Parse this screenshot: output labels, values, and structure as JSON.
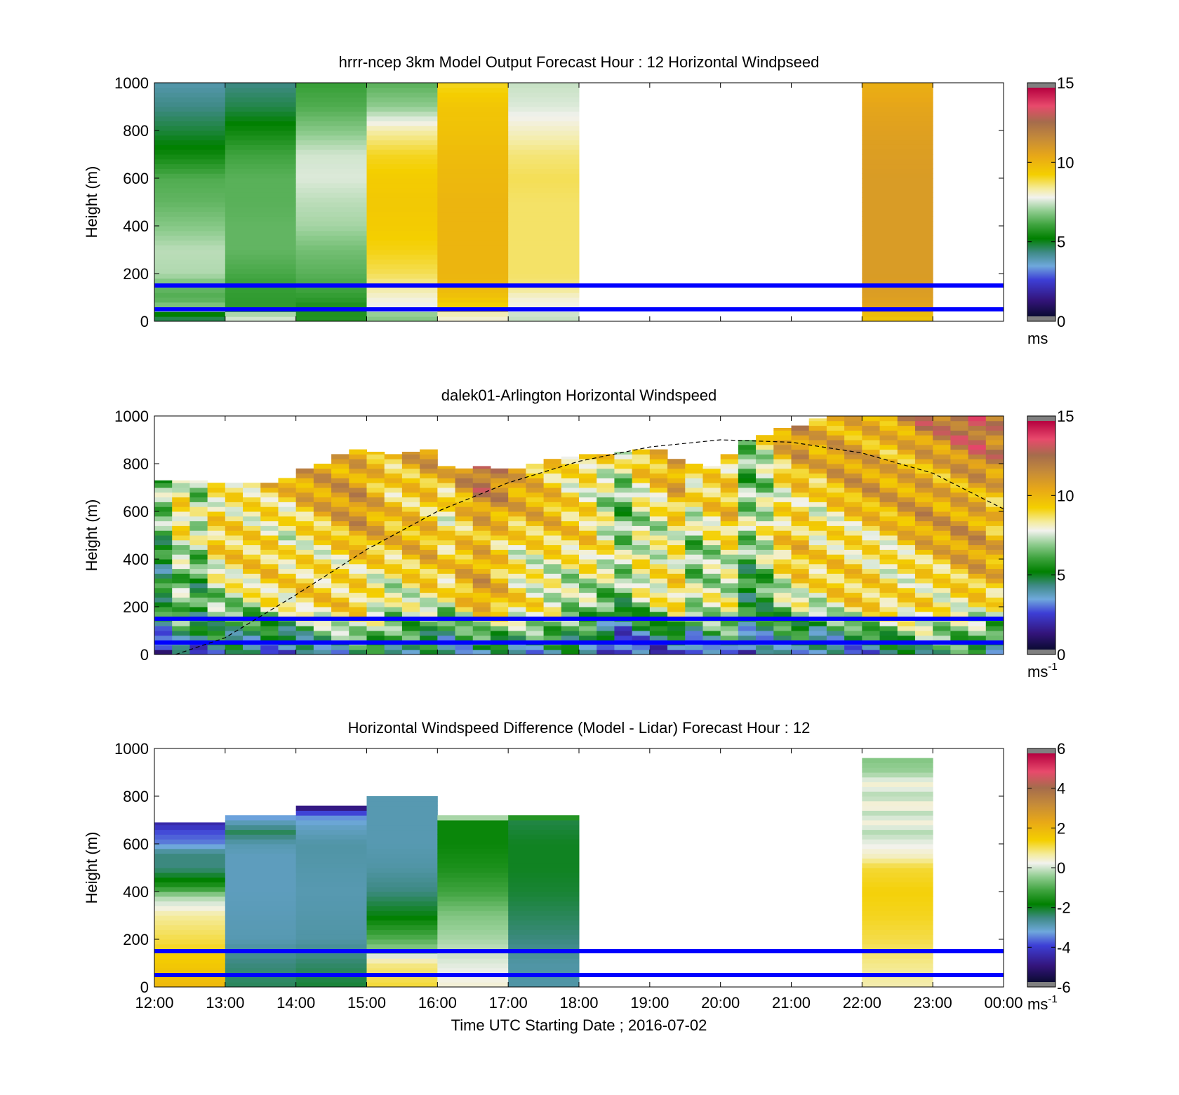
{
  "figure": {
    "xlabel": "Time UTC  Starting Date ; 2016-07-02",
    "x_ticks": [
      "12:00",
      "13:00",
      "14:00",
      "15:00",
      "16:00",
      "17:00",
      "18:00",
      "19:00",
      "20:00",
      "21:00",
      "22:00",
      "23:00",
      "00:00"
    ],
    "y_ticks": [
      "0",
      "200",
      "400",
      "600",
      "800",
      "1000"
    ],
    "ylabel": "Height (m)",
    "reference_lines_m": [
      50,
      150
    ],
    "reference_line_color": "#0000ff"
  },
  "chart_data": [
    {
      "type": "heatmap",
      "title": "hrrr-ncep 3km Model Output   Forecast Hour : 12 Horizontal Windpseed",
      "xlabel": "",
      "ylabel": "Height (m)",
      "xlim_hours": [
        12,
        24
      ],
      "ylim": [
        0,
        1000
      ],
      "colorbar": {
        "ticks": [
          "0",
          "5",
          "10",
          "15"
        ],
        "range": [
          0,
          15
        ],
        "unit_label": "ms",
        "unit_sup": ""
      },
      "columns": [
        {
          "start_hour": 12,
          "end_hour": 13,
          "top_m": 1000,
          "profile": [
            [
              25,
              4.6
            ],
            [
              50,
              7
            ],
            [
              100,
              6.2
            ],
            [
              150,
              6.5
            ],
            [
              200,
              7.2
            ],
            [
              300,
              7.3
            ],
            [
              400,
              6.8
            ],
            [
              500,
              6.4
            ],
            [
              600,
              6.2
            ],
            [
              700,
              5.3
            ],
            [
              800,
              4.7
            ],
            [
              900,
              4.2
            ],
            [
              1000,
              3.8
            ]
          ]
        },
        {
          "start_hour": 13,
          "end_hour": 14,
          "top_m": 1000,
          "profile": [
            [
              25,
              7.5
            ],
            [
              50,
              5.8
            ],
            [
              100,
              5.8
            ],
            [
              150,
              5.9
            ],
            [
              200,
              6.1
            ],
            [
              300,
              6.4
            ],
            [
              400,
              6.4
            ],
            [
              500,
              6.3
            ],
            [
              600,
              6.3
            ],
            [
              700,
              6
            ],
            [
              800,
              5.3
            ],
            [
              900,
              4.6
            ],
            [
              1000,
              4.2
            ]
          ]
        },
        {
          "start_hour": 14,
          "end_hour": 15,
          "top_m": 1000,
          "profile": [
            [
              25,
              5.6
            ],
            [
              50,
              5.4
            ],
            [
              100,
              5.8
            ],
            [
              150,
              6.1
            ],
            [
              200,
              6.3
            ],
            [
              300,
              6.6
            ],
            [
              400,
              7.1
            ],
            [
              500,
              7.3
            ],
            [
              600,
              7.6
            ],
            [
              700,
              7.5
            ],
            [
              800,
              6.8
            ],
            [
              900,
              6.2
            ],
            [
              1000,
              5.9
            ]
          ]
        },
        {
          "start_hour": 15,
          "end_hour": 16,
          "top_m": 1000,
          "profile": [
            [
              25,
              6.8
            ],
            [
              50,
              7.6
            ],
            [
              100,
              8
            ],
            [
              150,
              8.4
            ],
            [
              200,
              8.8
            ],
            [
              300,
              9.2
            ],
            [
              400,
              9.4
            ],
            [
              500,
              9.5
            ],
            [
              600,
              9.4
            ],
            [
              700,
              9.1
            ],
            [
              800,
              8.3
            ],
            [
              900,
              6.9
            ],
            [
              1000,
              6.3
            ]
          ]
        },
        {
          "start_hour": 16,
          "end_hour": 17,
          "top_m": 1000,
          "profile": [
            [
              25,
              8
            ],
            [
              50,
              9
            ],
            [
              100,
              9.7
            ],
            [
              150,
              10
            ],
            [
              200,
              10.1
            ],
            [
              300,
              10.1
            ],
            [
              400,
              10.1
            ],
            [
              500,
              10.1
            ],
            [
              600,
              10
            ],
            [
              700,
              9.9
            ],
            [
              800,
              9.7
            ],
            [
              900,
              9.6
            ],
            [
              1000,
              9.1
            ]
          ]
        },
        {
          "start_hour": 17,
          "end_hour": 18,
          "top_m": 1000,
          "profile": [
            [
              25,
              7.4
            ],
            [
              50,
              7.8
            ],
            [
              100,
              8
            ],
            [
              150,
              8.6
            ],
            [
              200,
              8.7
            ],
            [
              300,
              8.7
            ],
            [
              400,
              8.7
            ],
            [
              500,
              8.7
            ],
            [
              600,
              8.8
            ],
            [
              700,
              8.6
            ],
            [
              800,
              8.1
            ],
            [
              900,
              7.6
            ],
            [
              1000,
              7.4
            ]
          ]
        },
        {
          "start_hour": 22,
          "end_hour": 23,
          "top_m": 1000,
          "profile": [
            [
              25,
              9.7
            ],
            [
              50,
              10.6
            ],
            [
              100,
              10.9
            ],
            [
              200,
              11
            ],
            [
              300,
              11
            ],
            [
              400,
              11
            ],
            [
              500,
              11
            ],
            [
              600,
              11
            ],
            [
              700,
              10.9
            ],
            [
              800,
              10.8
            ],
            [
              900,
              10.6
            ],
            [
              1000,
              10.3
            ]
          ]
        }
      ]
    },
    {
      "type": "heatmap",
      "title": "dalek01-Arlington  Horizontal Windspeed",
      "xlabel": "",
      "ylabel": "Height (m)",
      "xlim_hours": [
        12,
        24
      ],
      "ylim": [
        0,
        1000
      ],
      "colorbar": {
        "ticks": [
          "0",
          "5",
          "10",
          "15"
        ],
        "range": [
          0,
          15
        ],
        "unit_label": "ms",
        "unit_sup": "-1"
      },
      "bins_per_hour": 4,
      "column_tops_m": [
        730,
        730,
        730,
        720,
        720,
        720,
        720,
        740,
        780,
        800,
        840,
        860,
        850,
        840,
        850,
        860,
        790,
        780,
        790,
        780,
        780,
        800,
        820,
        830,
        840,
        840,
        850,
        860,
        860,
        820,
        800,
        790,
        840,
        900,
        920,
        950,
        960,
        990,
        1000,
        1000,
        1000,
        1000,
        1000,
        1000,
        1000,
        1000,
        1000,
        1000
      ],
      "column_speeds_ms": [
        6.5,
        8.8,
        7.6,
        9.5,
        9.8,
        9.9,
        10.2,
        9.8,
        10.4,
        10.6,
        11,
        11.4,
        10.8,
        10.2,
        10.6,
        10.8,
        10,
        11.2,
        12.1,
        11.4,
        10.4,
        10.3,
        10.1,
        9.6,
        9.6,
        8.6,
        7.5,
        8.9,
        9.3,
        10.2,
        8.3,
        9.2,
        9.8,
        7.1,
        8,
        9.7,
        10.4,
        9.8,
        10.3,
        10.5,
        10.6,
        10.5,
        10.8,
        11.3,
        11.2,
        11.6,
        11.8,
        11.2
      ],
      "boundary_curve": [
        [
          12.3,
          0
        ],
        [
          13,
          70
        ],
        [
          14,
          250
        ],
        [
          15,
          440
        ],
        [
          16,
          600
        ],
        [
          17,
          720
        ],
        [
          18,
          810
        ],
        [
          19,
          870
        ],
        [
          20,
          900
        ],
        [
          21,
          890
        ],
        [
          22,
          845
        ],
        [
          23,
          760
        ],
        [
          24,
          610
        ]
      ]
    },
    {
      "type": "heatmap",
      "title": "Horizontal Windspeed Difference (Model - Lidar) Forecast Hour : 12",
      "xlabel": "Time UTC  Starting Date ; 2016-07-02",
      "ylabel": "Height (m)",
      "xlim_hours": [
        12,
        24
      ],
      "ylim": [
        0,
        1000
      ],
      "colorbar": {
        "ticks": [
          "-6",
          "-4",
          "-2",
          "0",
          "2",
          "4",
          "6"
        ],
        "range": [
          -6,
          6
        ],
        "unit_label": "ms",
        "unit_sup": "-1"
      },
      "columns": [
        {
          "start_hour": 12,
          "end_hour": 13,
          "top_m": 690,
          "profile": [
            [
              0,
              2
            ],
            [
              100,
              1.6
            ],
            [
              200,
              1.1
            ],
            [
              300,
              0.7
            ],
            [
              380,
              -0.3
            ],
            [
              420,
              -1.5
            ],
            [
              500,
              -2.6
            ],
            [
              560,
              -2.6
            ],
            [
              600,
              -3.6
            ],
            [
              650,
              -4
            ],
            [
              690,
              -4.6
            ]
          ]
        },
        {
          "start_hour": 13,
          "end_hour": 14,
          "top_m": 720,
          "profile": [
            [
              0,
              -2.4
            ],
            [
              100,
              -2.6
            ],
            [
              200,
              -3
            ],
            [
              400,
              -3.1
            ],
            [
              550,
              -3.1
            ],
            [
              600,
              -3
            ],
            [
              650,
              -2.4
            ],
            [
              700,
              -3.2
            ],
            [
              720,
              -3.6
            ]
          ]
        },
        {
          "start_hour": 14,
          "end_hour": 15,
          "top_m": 760,
          "profile": [
            [
              0,
              -2.2
            ],
            [
              100,
              -2.5
            ],
            [
              200,
              -2.9
            ],
            [
              400,
              -3
            ],
            [
              600,
              -2.9
            ],
            [
              680,
              -3.2
            ],
            [
              720,
              -3.6
            ],
            [
              740,
              -4.5
            ],
            [
              760,
              -5.6
            ]
          ]
        },
        {
          "start_hour": 15,
          "end_hour": 16,
          "top_m": 800,
          "profile": [
            [
              0,
              1.2
            ],
            [
              100,
              0.8
            ],
            [
              150,
              -0.4
            ],
            [
              200,
              -1
            ],
            [
              300,
              -2
            ],
            [
              400,
              -2.6
            ],
            [
              500,
              -2.9
            ],
            [
              600,
              -3
            ],
            [
              700,
              -3
            ],
            [
              800,
              -3
            ]
          ]
        },
        {
          "start_hour": 16,
          "end_hour": 17,
          "top_m": 720,
          "profile": [
            [
              0,
              0.4
            ],
            [
              100,
              0.1
            ],
            [
              200,
              -0.3
            ],
            [
              300,
              -0.6
            ],
            [
              400,
              -1.2
            ],
            [
              500,
              -1.6
            ],
            [
              600,
              -1.8
            ],
            [
              700,
              -1.8
            ],
            [
              720,
              1.2
            ]
          ]
        },
        {
          "start_hour": 17,
          "end_hour": 18,
          "top_m": 720,
          "profile": [
            [
              0,
              -2.9
            ],
            [
              100,
              -2.9
            ],
            [
              200,
              -2.6
            ],
            [
              300,
              -2.4
            ],
            [
              400,
              -2.2
            ],
            [
              500,
              -2.1
            ],
            [
              600,
              -2.1
            ],
            [
              700,
              -2.3
            ],
            [
              720,
              -0.7
            ]
          ]
        },
        {
          "start_hour": 22,
          "end_hour": 23,
          "top_m": 960,
          "profile": [
            [
              0,
              0.6
            ],
            [
              100,
              0.8
            ],
            [
              200,
              1.1
            ],
            [
              300,
              1.3
            ],
            [
              400,
              1.4
            ],
            [
              500,
              1.2
            ],
            [
              550,
              0.5
            ],
            [
              600,
              0.2
            ],
            [
              650,
              -0.2
            ],
            [
              700,
              0.5
            ],
            [
              720,
              -0.4
            ],
            [
              760,
              0.6
            ],
            [
              800,
              -0.3
            ],
            [
              850,
              0.4
            ],
            [
              900,
              -0.4
            ],
            [
              960,
              -0.6
            ]
          ]
        }
      ]
    }
  ]
}
